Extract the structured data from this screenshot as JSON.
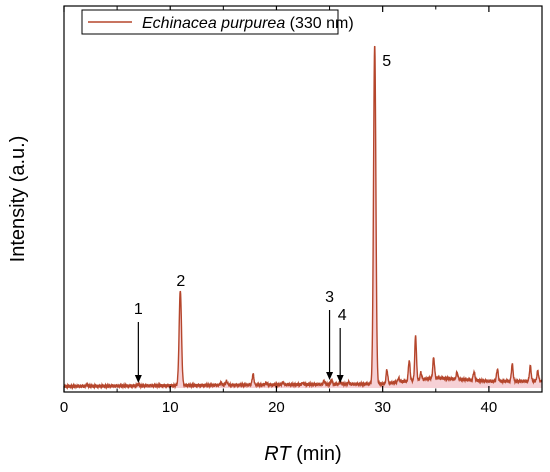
{
  "chart_data": {
    "type": "line",
    "title": "",
    "xlabel_italic": "RT",
    "xlabel_rest": " (min)",
    "ylabel": "Intensity (a.u.)",
    "xlim": [
      0,
      45
    ],
    "ylim": [
      0,
      1
    ],
    "x_ticks": [
      0,
      10,
      20,
      30,
      40
    ],
    "y_ticks_shown": false,
    "grid": false,
    "legend": {
      "placement": "top-left",
      "name_italic": "Echinacea purpurea",
      "name_rest": " (330 nm)"
    },
    "series": [
      {
        "name": "Echinacea purpurea (330 nm)",
        "color": "#b5462c",
        "fill_color": "#f4c6cc",
        "baseline": 0.0,
        "peaks": [
          {
            "x": 2.2,
            "y": 0.004
          },
          {
            "x": 7.0,
            "y": 0.005
          },
          {
            "x": 10.95,
            "y": 0.28
          },
          {
            "x": 14.8,
            "y": 0.008
          },
          {
            "x": 15.3,
            "y": 0.012
          },
          {
            "x": 17.8,
            "y": 0.032
          },
          {
            "x": 19.0,
            "y": 0.006
          },
          {
            "x": 20.6,
            "y": 0.006
          },
          {
            "x": 22.5,
            "y": 0.005
          },
          {
            "x": 24.5,
            "y": 0.01
          },
          {
            "x": 25.2,
            "y": 0.012
          },
          {
            "x": 26.0,
            "y": 0.008
          },
          {
            "x": 26.8,
            "y": 0.006
          },
          {
            "x": 29.25,
            "y": 1.0
          },
          {
            "x": 30.4,
            "y": 0.04
          },
          {
            "x": 31.5,
            "y": 0.012
          },
          {
            "x": 32.5,
            "y": 0.06
          },
          {
            "x": 33.1,
            "y": 0.13
          },
          {
            "x": 33.6,
            "y": 0.02
          },
          {
            "x": 34.8,
            "y": 0.06
          },
          {
            "x": 37.0,
            "y": 0.02
          },
          {
            "x": 38.6,
            "y": 0.025
          },
          {
            "x": 40.8,
            "y": 0.035
          },
          {
            "x": 42.2,
            "y": 0.05
          },
          {
            "x": 43.9,
            "y": 0.045
          },
          {
            "x": 44.6,
            "y": 0.03
          }
        ],
        "drift": [
          [
            0,
            0.005
          ],
          [
            30,
            0.012
          ],
          [
            35,
            0.03
          ],
          [
            40,
            0.02
          ],
          [
            45,
            0.02
          ]
        ]
      }
    ],
    "annotations": [
      {
        "label": "1",
        "x": 7.0,
        "arrow": true
      },
      {
        "label": "2",
        "x": 11.0,
        "arrow": false
      },
      {
        "label": "3",
        "x": 25.0,
        "arrow": true
      },
      {
        "label": "4",
        "x": 26.0,
        "arrow": true
      },
      {
        "label": "5",
        "x": 29.25,
        "arrow": false
      }
    ]
  }
}
